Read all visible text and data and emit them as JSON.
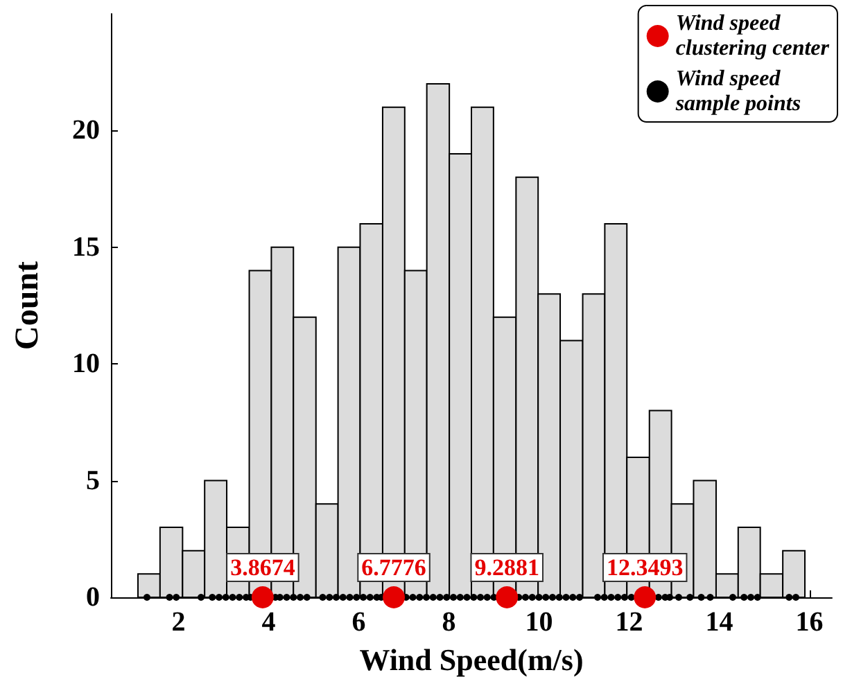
{
  "chart_data": {
    "type": "histogram",
    "xlabel": "Wind Speed(m/s)",
    "ylabel": "Count",
    "bins": [
      1.1,
      1.59,
      2.09,
      2.58,
      3.07,
      3.57,
      4.06,
      4.55,
      5.05,
      5.54,
      6.03,
      6.53,
      7.02,
      7.51,
      8.01,
      8.5,
      8.99,
      9.49,
      9.98,
      10.47,
      10.97,
      11.46,
      11.95,
      12.45,
      12.94,
      13.43,
      13.93,
      14.42,
      14.91,
      15.41,
      15.9
    ],
    "values": [
      1,
      3,
      2,
      5,
      3,
      14,
      15,
      12,
      4,
      15,
      16,
      21,
      14,
      22,
      19,
      21,
      12,
      18,
      13,
      11,
      13,
      16,
      6,
      8,
      4,
      5,
      1,
      3,
      1,
      2
    ],
    "color": "#dcdcdc",
    "series": [
      {
        "type": "scatter",
        "name": "Wind speed sample points",
        "color": "#000000",
        "marker": "circle",
        "x": [
          1.3,
          1.8,
          1.95,
          2.5,
          2.75,
          2.9,
          3.05,
          3.2,
          3.35,
          3.5,
          3.6,
          4.15,
          4.25,
          4.4,
          4.55,
          4.7,
          4.85,
          5.2,
          5.35,
          5.5,
          5.65,
          5.8,
          5.95,
          6.1,
          6.25,
          6.4,
          6.5,
          7.05,
          7.2,
          7.35,
          7.5,
          7.65,
          7.8,
          7.95,
          8.1,
          8.25,
          8.4,
          8.55,
          8.7,
          8.85,
          9.0,
          9.55,
          9.7,
          9.85,
          10.0,
          10.15,
          10.3,
          10.45,
          10.6,
          10.75,
          10.9,
          11.3,
          11.45,
          11.6,
          11.75,
          11.9,
          12.05,
          12.65,
          12.8,
          12.9,
          13.1,
          13.35,
          13.6,
          13.8,
          14.3,
          14.55,
          14.7,
          14.85,
          15.55,
          15.7
        ],
        "values": [
          0,
          0,
          0,
          0,
          0,
          0,
          0,
          0,
          0,
          0,
          0,
          0,
          0,
          0,
          0,
          0,
          0,
          0,
          0,
          0,
          0,
          0,
          0,
          0,
          0,
          0,
          0,
          0,
          0,
          0,
          0,
          0,
          0,
          0,
          0,
          0,
          0,
          0,
          0,
          0,
          0,
          0,
          0,
          0,
          0,
          0,
          0,
          0,
          0,
          0,
          0,
          0,
          0,
          0,
          0,
          0,
          0,
          0,
          0,
          0,
          0,
          0,
          0,
          0,
          0,
          0,
          0,
          0,
          0,
          0
        ]
      },
      {
        "type": "scatter",
        "name": "Wind speed clustering center",
        "color": "#e50000",
        "marker": "circle",
        "x": [
          3.8674,
          6.7776,
          9.2881,
          12.3493
        ],
        "values": [
          0,
          0,
          0,
          0
        ]
      }
    ],
    "annotations": [
      {
        "text": "3.8674",
        "x": 3.8674,
        "y": 0
      },
      {
        "text": "6.7776",
        "x": 6.7776,
        "y": 0
      },
      {
        "text": "9.2881",
        "x": 9.2881,
        "y": 0
      },
      {
        "text": "12.3493",
        "x": 12.3493,
        "y": 0
      }
    ],
    "xlim": [
      0.5,
      16.5
    ],
    "xticks": [
      2,
      4,
      6,
      8,
      10,
      12,
      14,
      16
    ],
    "ylim": [
      0,
      25
    ],
    "yticks": [
      0,
      5,
      10,
      15,
      20
    ],
    "grid": false,
    "legend": "top right"
  }
}
